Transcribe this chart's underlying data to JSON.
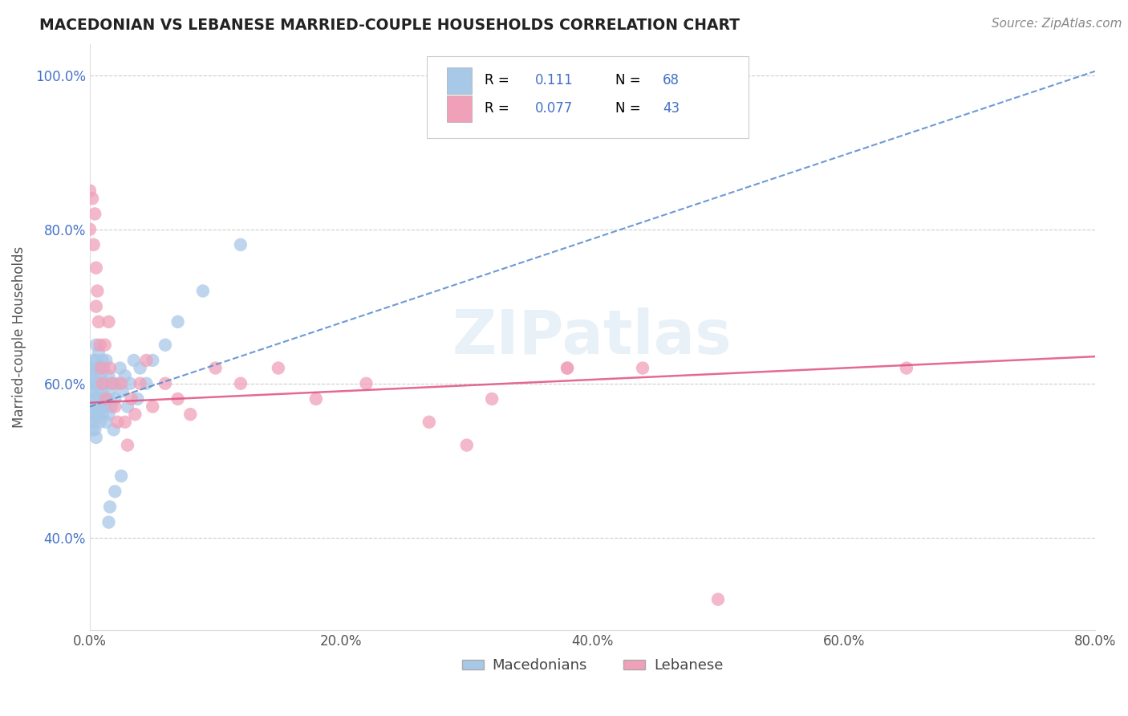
{
  "title": "MACEDONIAN VS LEBANESE MARRIED-COUPLE HOUSEHOLDS CORRELATION CHART",
  "source": "Source: ZipAtlas.com",
  "ylabel": "Married-couple Households",
  "macedonian_R": 0.111,
  "macedonian_N": 68,
  "lebanese_R": 0.077,
  "lebanese_N": 43,
  "macedonian_color": "#a8c8e8",
  "lebanese_color": "#f0a0b8",
  "macedonian_line_color": "#5588cc",
  "lebanese_line_color": "#e05080",
  "watermark": "ZIPatlas",
  "xmin": 0.0,
  "xmax": 0.8,
  "ymin": 0.28,
  "ymax": 1.04,
  "macedonian_line_x0": 0.0,
  "macedonian_line_y0": 0.57,
  "macedonian_line_x1": 0.8,
  "macedonian_line_y1": 1.005,
  "lebanese_line_x0": 0.0,
  "lebanese_line_y0": 0.575,
  "lebanese_line_x1": 0.8,
  "lebanese_line_y1": 0.635,
  "macedonian_scatter_x": [
    0.0,
    0.0,
    0.0,
    0.001,
    0.001,
    0.001,
    0.002,
    0.002,
    0.002,
    0.002,
    0.003,
    0.003,
    0.003,
    0.003,
    0.004,
    0.004,
    0.004,
    0.005,
    0.005,
    0.005,
    0.005,
    0.005,
    0.006,
    0.006,
    0.006,
    0.007,
    0.007,
    0.007,
    0.008,
    0.008,
    0.009,
    0.009,
    0.01,
    0.01,
    0.01,
    0.011,
    0.011,
    0.012,
    0.012,
    0.013,
    0.013,
    0.014,
    0.015,
    0.015,
    0.016,
    0.017,
    0.018,
    0.019,
    0.02,
    0.022,
    0.024,
    0.026,
    0.028,
    0.03,
    0.032,
    0.035,
    0.038,
    0.04,
    0.045,
    0.05,
    0.06,
    0.07,
    0.09,
    0.12,
    0.015,
    0.016,
    0.02,
    0.025
  ],
  "macedonian_scatter_y": [
    0.6,
    0.62,
    0.58,
    0.57,
    0.61,
    0.55,
    0.59,
    0.56,
    0.62,
    0.54,
    0.6,
    0.63,
    0.57,
    0.55,
    0.58,
    0.61,
    0.54,
    0.56,
    0.6,
    0.63,
    0.65,
    0.53,
    0.59,
    0.62,
    0.57,
    0.56,
    0.6,
    0.64,
    0.58,
    0.55,
    0.61,
    0.57,
    0.59,
    0.63,
    0.56,
    0.58,
    0.62,
    0.57,
    0.6,
    0.55,
    0.63,
    0.58,
    0.56,
    0.61,
    0.59,
    0.57,
    0.6,
    0.54,
    0.58,
    0.6,
    0.62,
    0.59,
    0.61,
    0.57,
    0.6,
    0.63,
    0.58,
    0.62,
    0.6,
    0.63,
    0.65,
    0.68,
    0.72,
    0.78,
    0.42,
    0.44,
    0.46,
    0.48
  ],
  "lebanese_scatter_x": [
    0.0,
    0.0,
    0.002,
    0.003,
    0.004,
    0.005,
    0.005,
    0.006,
    0.007,
    0.008,
    0.009,
    0.01,
    0.012,
    0.013,
    0.015,
    0.016,
    0.018,
    0.02,
    0.022,
    0.025,
    0.028,
    0.03,
    0.033,
    0.036,
    0.04,
    0.045,
    0.05,
    0.06,
    0.07,
    0.08,
    0.1,
    0.12,
    0.15,
    0.18,
    0.22,
    0.27,
    0.32,
    0.38,
    0.5,
    0.65,
    0.38,
    0.44,
    0.3
  ],
  "lebanese_scatter_y": [
    0.85,
    0.8,
    0.84,
    0.78,
    0.82,
    0.75,
    0.7,
    0.72,
    0.68,
    0.65,
    0.62,
    0.6,
    0.65,
    0.58,
    0.68,
    0.62,
    0.6,
    0.57,
    0.55,
    0.6,
    0.55,
    0.52,
    0.58,
    0.56,
    0.6,
    0.63,
    0.57,
    0.6,
    0.58,
    0.56,
    0.62,
    0.6,
    0.62,
    0.58,
    0.6,
    0.55,
    0.58,
    0.62,
    0.32,
    0.62,
    0.62,
    0.62,
    0.52
  ],
  "ytick_positions": [
    0.4,
    0.6,
    0.8,
    1.0
  ],
  "ytick_labels": [
    "40.0%",
    "60.0%",
    "80.0%",
    "100.0%"
  ],
  "xtick_positions": [
    0.0,
    0.2,
    0.4,
    0.6,
    0.8
  ],
  "xtick_labels": [
    "0.0%",
    "20.0%",
    "40.0%",
    "60.0%",
    "80.0%"
  ],
  "legend_R1": "R =  0.111",
  "legend_N1": "N = 68",
  "legend_R2": "R = 0.077",
  "legend_N2": "N = 43"
}
